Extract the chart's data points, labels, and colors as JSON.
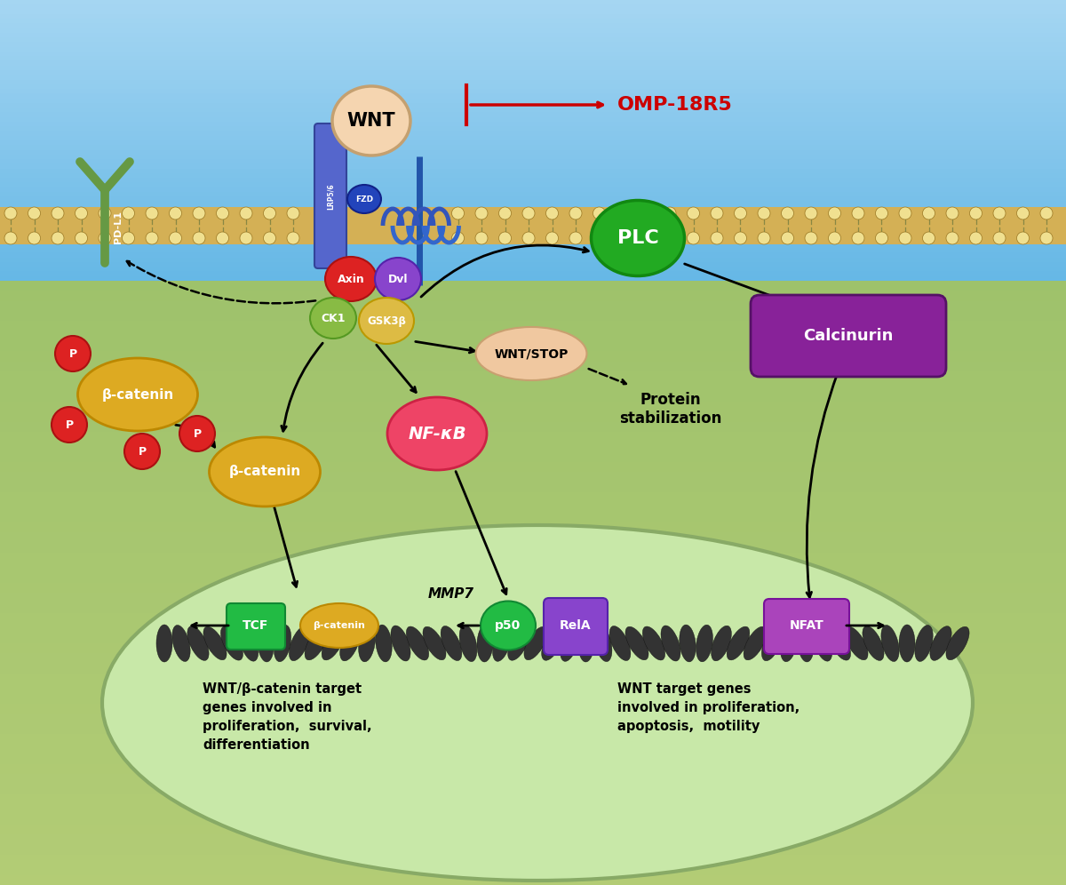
{
  "wnt_label": "WNT",
  "fzd_label": "FZD",
  "lrp_label": "LRP5/6",
  "omp_label": "OMP-18R5",
  "plc_label": "PLC",
  "calcinurin_label": "Calcinurin",
  "axin_label": "Axin",
  "dvl_label": "Dvl",
  "ck1_label": "CK1",
  "gsk3b_label": "GSK3β",
  "wnt_stop_label": "WNT/STOP",
  "nfkb_label": "NF-κB",
  "beta_cat_label": "β-catenin",
  "pdl1_label": "PD-L1",
  "tcf_label": "TCF",
  "beta_cat_dna_label": "β-catenin",
  "p50_label": "p50",
  "rela_label": "RelA",
  "nfat_label": "NFAT",
  "text1": "WNT/β-catenin target\ngenes involved in\nproliferation,  survival,\ndifferentiation",
  "text2": "WNT target genes\ninvolved in proliferation,\napoptosis,  motility",
  "protein_stab": "Protein\nstabilization",
  "mmp7_label": "MMP7",
  "wnt_color": "#f5d5b0",
  "fzd_color": "#3355bb",
  "lrp_color": "#5566cc",
  "axin_color": "#dd2222",
  "dvl_color": "#8844cc",
  "ck1_color": "#88bb44",
  "gsk3b_color": "#ddbb44",
  "plc_color": "#22aa22",
  "calcinurin_color": "#882299",
  "wnt_stop_color": "#f0c8a0",
  "nfkb_color": "#ee4466",
  "beta_cat_color": "#ddaa22",
  "pdl1_color": "#669944",
  "p_color": "#dd2222",
  "tcf_color": "#22bb44",
  "p50_color": "#22bb44",
  "rela_color": "#8844cc",
  "nfat_color": "#aa44bb",
  "nucleus_color": "#c8e8a8",
  "nucleus_border": "#88aa66",
  "membrane_gold": "#d4b055",
  "membrane_light": "#f0e090",
  "bg_blue_top": "#88ccee",
  "bg_blue_bot": "#aaddee",
  "bg_green_top": "#b8cc88",
  "bg_green_bot": "#c8d898"
}
